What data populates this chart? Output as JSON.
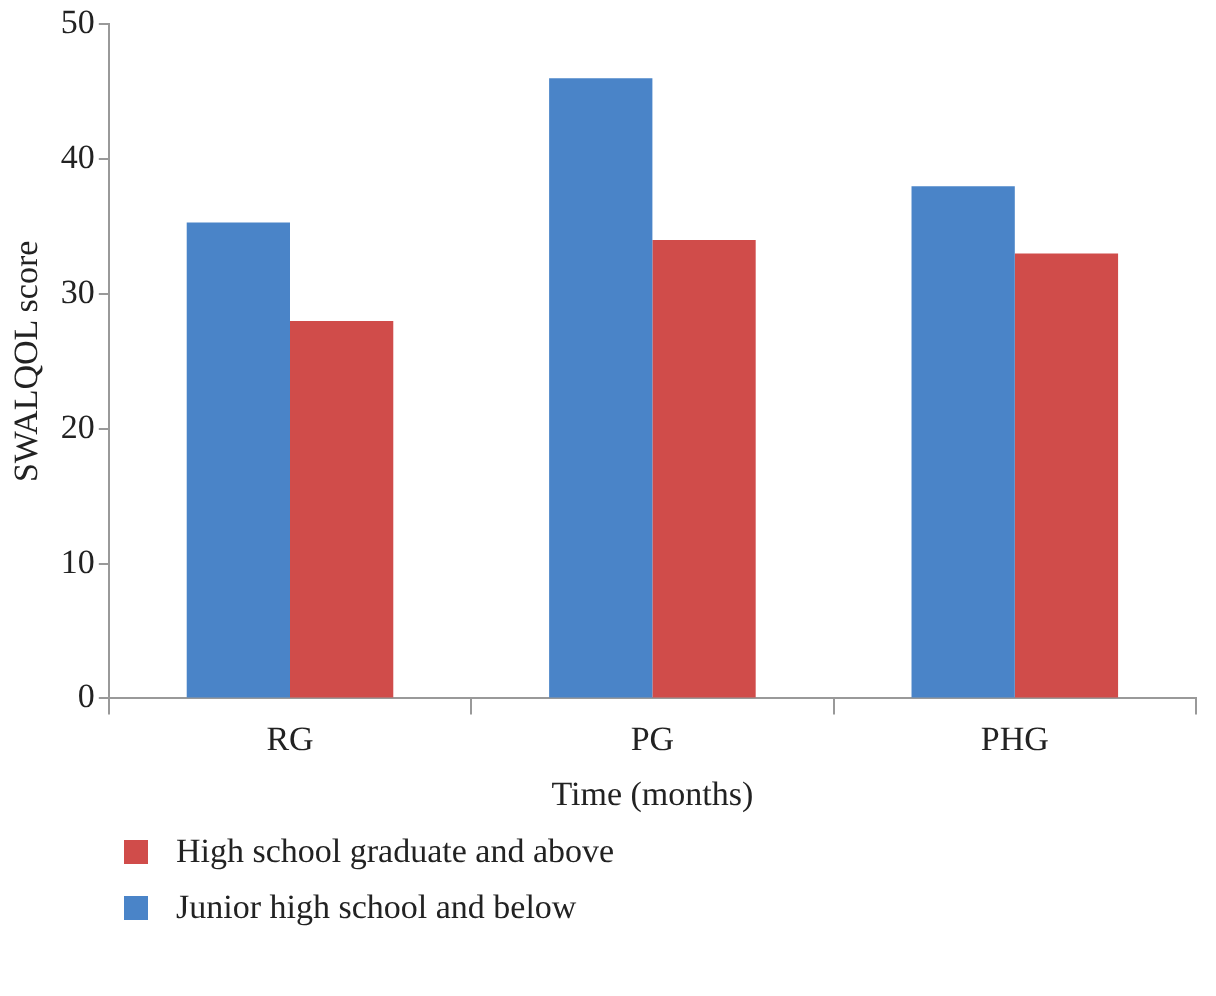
{
  "chart_data": {
    "type": "bar",
    "xlabel": "Time (months)",
    "ylabel": "SWALQOL score",
    "categories": [
      "RG",
      "PG",
      "PHG"
    ],
    "series": [
      {
        "name": "Junior high school and below",
        "color": "#4a84c8",
        "values": [
          35.3,
          46,
          38
        ]
      },
      {
        "name": "High school graduate and above",
        "color": "#d04c4a",
        "values": [
          28,
          34,
          33
        ]
      }
    ],
    "ylim": [
      0,
      50
    ],
    "yticks": [
      0,
      10,
      20,
      30,
      40,
      50
    ],
    "grid": false,
    "legend": "bottom left"
  }
}
